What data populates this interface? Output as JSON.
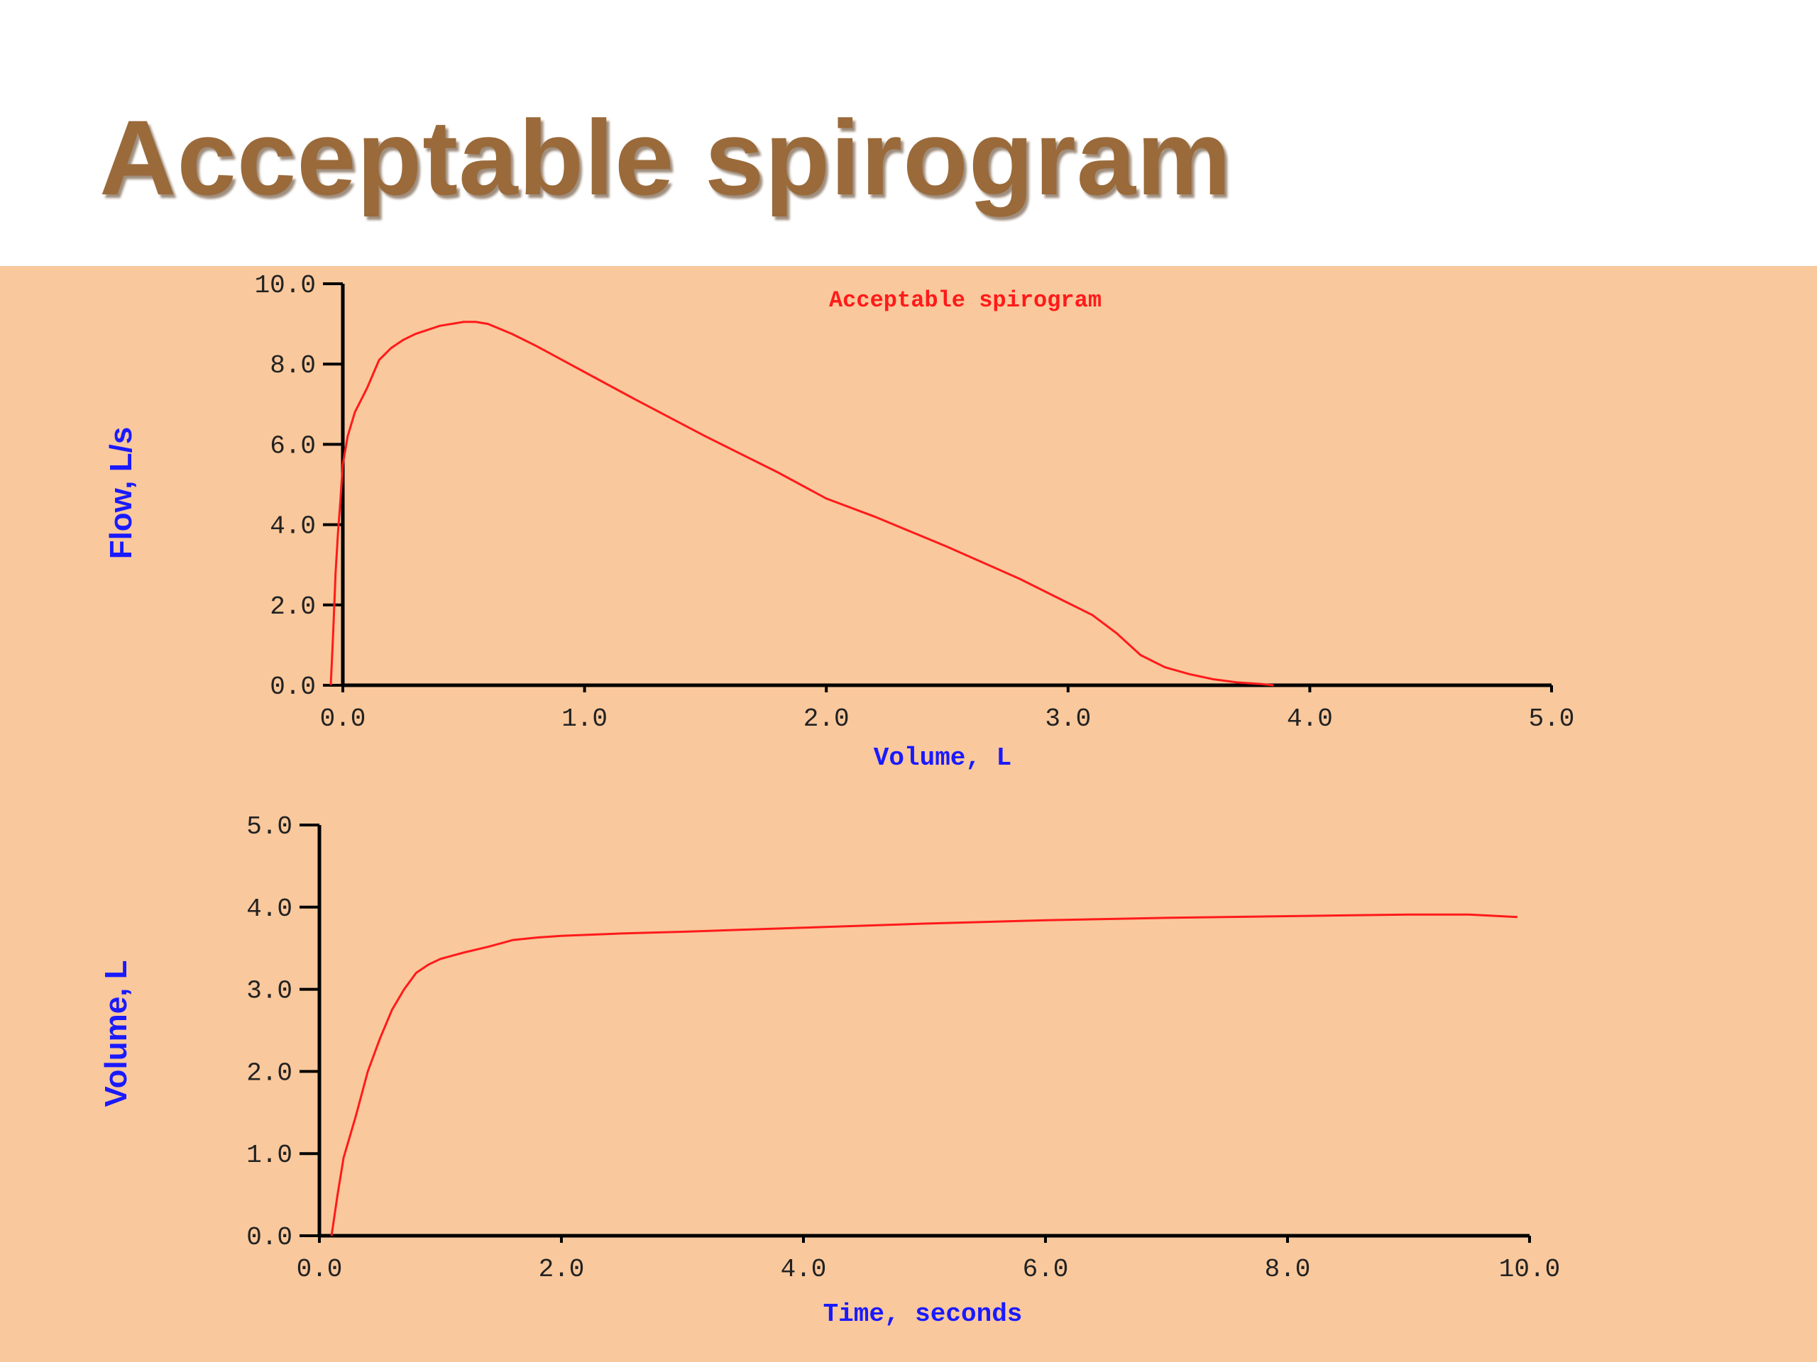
{
  "slide": {
    "title": "Acceptable spirogram"
  },
  "colors": {
    "panel_bg": "#f9c89c",
    "curve": "#ff1a1a",
    "axis_label": "#1a1aff",
    "title": "#9a6a3a",
    "axes": "#000000",
    "ticks": "#222222"
  },
  "chart_data": [
    {
      "type": "line",
      "title": "Acceptable spirogram",
      "xlabel": "Volume, L",
      "ylabel": "Flow, L/s",
      "xlim": [
        0,
        5
      ],
      "ylim": [
        0,
        10
      ],
      "x_ticks": [
        0,
        1,
        2,
        3,
        4,
        5
      ],
      "y_ticks": [
        0,
        2,
        4,
        6,
        8,
        10
      ],
      "x_tick_labels": [
        "0.0",
        "1.0",
        "2.0",
        "3.0",
        "4.0",
        "5.0"
      ],
      "y_tick_labels": [
        "0.0",
        "2.0",
        "4.0",
        "6.0",
        "8.0",
        "10.0"
      ],
      "grid": false,
      "series": [
        {
          "x": [
            -0.05,
            -0.04,
            -0.03,
            -0.02,
            -0.01,
            0.0,
            0.02,
            0.05,
            0.1,
            0.15,
            0.2,
            0.25,
            0.3,
            0.4,
            0.5,
            0.55,
            0.6,
            0.7,
            0.8,
            1.0,
            1.2,
            1.5,
            1.8,
            2.0,
            2.2,
            2.5,
            2.8,
            3.0,
            3.1,
            3.2,
            3.3,
            3.4,
            3.5,
            3.6,
            3.7,
            3.8,
            3.85
          ],
          "y": [
            0.0,
            1.3,
            2.8,
            3.8,
            4.6,
            5.5,
            6.2,
            6.8,
            7.4,
            8.1,
            8.4,
            8.6,
            8.75,
            8.95,
            9.05,
            9.05,
            9.0,
            8.75,
            8.45,
            7.8,
            7.15,
            6.2,
            5.3,
            4.65,
            4.2,
            3.45,
            2.65,
            2.05,
            1.75,
            1.3,
            0.75,
            0.45,
            0.28,
            0.15,
            0.07,
            0.03,
            0.0
          ]
        }
      ]
    },
    {
      "type": "line",
      "title": "",
      "xlabel": "Time, seconds",
      "ylabel": "Volume, L",
      "xlim": [
        0,
        10
      ],
      "ylim": [
        0,
        5
      ],
      "x_ticks": [
        0,
        2,
        4,
        6,
        8,
        10
      ],
      "y_ticks": [
        0,
        1,
        2,
        3,
        4,
        5
      ],
      "x_tick_labels": [
        "0.0",
        "2.0",
        "4.0",
        "6.0",
        "8.0",
        "10.0"
      ],
      "y_tick_labels": [
        "0.0",
        "1.0",
        "2.0",
        "3.0",
        "4.0",
        "5.0"
      ],
      "grid": false,
      "series": [
        {
          "x": [
            0.1,
            0.15,
            0.2,
            0.3,
            0.4,
            0.5,
            0.6,
            0.7,
            0.8,
            0.9,
            1.0,
            1.2,
            1.4,
            1.6,
            1.8,
            2.0,
            2.5,
            3.0,
            4.0,
            5.0,
            6.0,
            7.0,
            8.0,
            9.0,
            9.5,
            9.9
          ],
          "y": [
            0.0,
            0.5,
            0.95,
            1.45,
            2.0,
            2.4,
            2.75,
            3.0,
            3.2,
            3.3,
            3.37,
            3.45,
            3.52,
            3.6,
            3.63,
            3.65,
            3.68,
            3.7,
            3.75,
            3.8,
            3.84,
            3.87,
            3.89,
            3.91,
            3.91,
            3.88
          ]
        }
      ]
    }
  ]
}
